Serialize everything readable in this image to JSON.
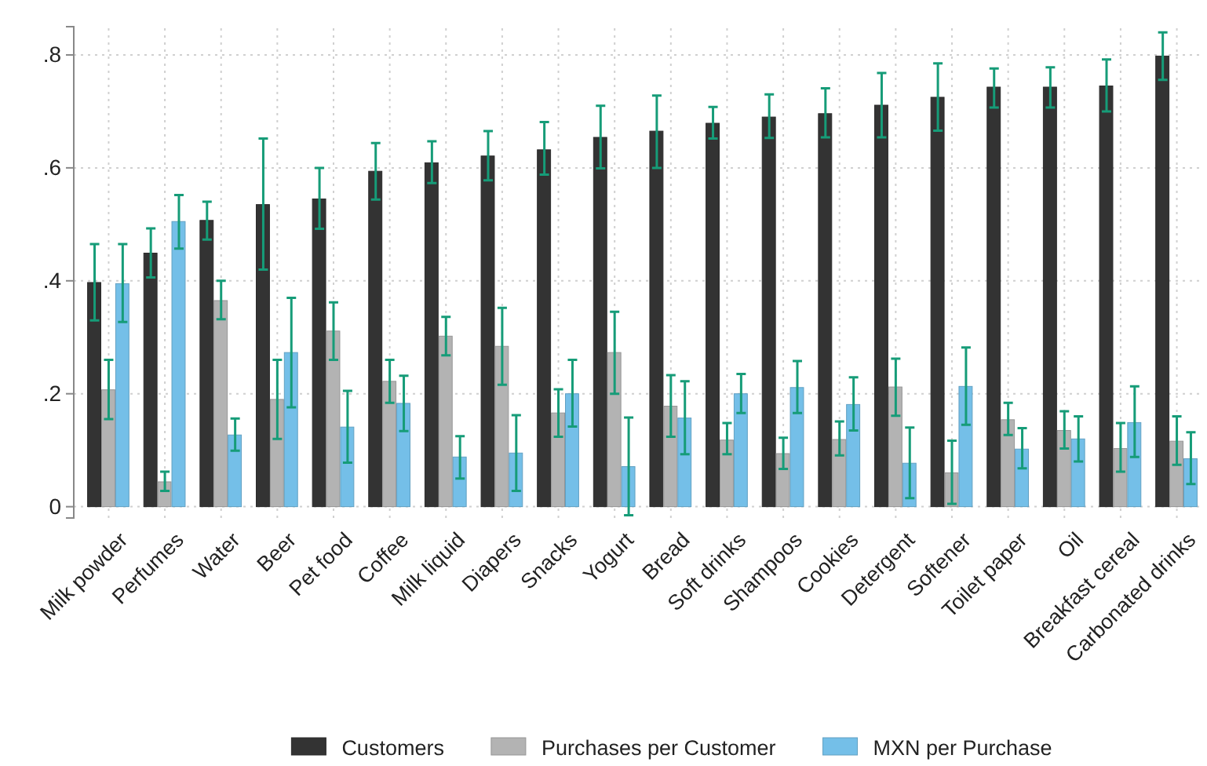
{
  "chart_data": {
    "type": "bar",
    "categories": [
      "Milk powder",
      "Perfumes",
      "Water",
      "Beer",
      "Pet food",
      "Coffee",
      "Milk liquid",
      "Diapers",
      "Snacks",
      "Yogurt",
      "Bread",
      "Soft drinks",
      "Shampoos",
      "Cookies",
      "Detergent",
      "Softener",
      "Toilet paper",
      "Oil",
      "Breakfast cereal",
      "Carbonated drinks"
    ],
    "series": [
      {
        "name": "Customers",
        "color": "#333333",
        "values": [
          0.397,
          0.449,
          0.507,
          0.535,
          0.545,
          0.594,
          0.609,
          0.621,
          0.632,
          0.654,
          0.665,
          0.679,
          0.69,
          0.696,
          0.711,
          0.725,
          0.743,
          0.743,
          0.745,
          0.798
        ],
        "errors": [
          [
            0.33,
            0.465
          ],
          [
            0.406,
            0.493
          ],
          [
            0.473,
            0.54
          ],
          [
            0.42,
            0.652
          ],
          [
            0.492,
            0.6
          ],
          [
            0.544,
            0.644
          ],
          [
            0.573,
            0.647
          ],
          [
            0.578,
            0.665
          ],
          [
            0.588,
            0.681
          ],
          [
            0.599,
            0.71
          ],
          [
            0.6,
            0.728
          ],
          [
            0.652,
            0.708
          ],
          [
            0.653,
            0.73
          ],
          [
            0.654,
            0.741
          ],
          [
            0.654,
            0.768
          ],
          [
            0.666,
            0.785
          ],
          [
            0.707,
            0.776
          ],
          [
            0.707,
            0.778
          ],
          [
            0.7,
            0.792
          ],
          [
            0.756,
            0.84
          ]
        ]
      },
      {
        "name": "Purchases per Customer",
        "color": "#b3b3b3",
        "values": [
          0.207,
          0.044,
          0.365,
          0.19,
          0.311,
          0.222,
          0.302,
          0.284,
          0.166,
          0.273,
          0.178,
          0.118,
          0.094,
          0.119,
          0.212,
          0.06,
          0.154,
          0.135,
          0.103,
          0.116
        ],
        "errors": [
          [
            0.155,
            0.26
          ],
          [
            0.028,
            0.062
          ],
          [
            0.332,
            0.4
          ],
          [
            0.12,
            0.26
          ],
          [
            0.26,
            0.362
          ],
          [
            0.184,
            0.26
          ],
          [
            0.268,
            0.336
          ],
          [
            0.216,
            0.352
          ],
          [
            0.124,
            0.208
          ],
          [
            0.2,
            0.345
          ],
          [
            0.124,
            0.233
          ],
          [
            0.093,
            0.148
          ],
          [
            0.067,
            0.122
          ],
          [
            0.091,
            0.151
          ],
          [
            0.161,
            0.262
          ],
          [
            0.005,
            0.117
          ],
          [
            0.127,
            0.184
          ],
          [
            0.103,
            0.169
          ],
          [
            0.062,
            0.148
          ],
          [
            0.074,
            0.16
          ]
        ]
      },
      {
        "name": "MXN per Purchase",
        "color": "#74bfe8",
        "values": [
          0.395,
          0.505,
          0.127,
          0.273,
          0.141,
          0.183,
          0.088,
          0.095,
          0.2,
          0.071,
          0.157,
          0.2,
          0.211,
          0.181,
          0.077,
          0.213,
          0.102,
          0.12,
          0.149,
          0.085
        ],
        "errors": [
          [
            0.327,
            0.465
          ],
          [
            0.457,
            0.552
          ],
          [
            0.099,
            0.156
          ],
          [
            0.176,
            0.37
          ],
          [
            0.078,
            0.205
          ],
          [
            0.134,
            0.232
          ],
          [
            0.05,
            0.125
          ],
          [
            0.028,
            0.162
          ],
          [
            0.142,
            0.26
          ],
          [
            -0.015,
            0.158
          ],
          [
            0.093,
            0.222
          ],
          [
            0.166,
            0.235
          ],
          [
            0.166,
            0.258
          ],
          [
            0.135,
            0.229
          ],
          [
            0.015,
            0.14
          ],
          [
            0.145,
            0.282
          ],
          [
            0.068,
            0.139
          ],
          [
            0.08,
            0.16
          ],
          [
            0.088,
            0.213
          ],
          [
            0.04,
            0.132
          ]
        ]
      }
    ],
    "ylim": [
      -0.02,
      0.85
    ],
    "yticks": [
      0,
      {
        "value": 0.2,
        "label": ".2"
      },
      {
        "value": 0.4,
        "label": ".4"
      },
      {
        "value": 0.6,
        "label": ".6"
      },
      {
        "value": 0.8,
        "label": ".8"
      }
    ],
    "grid": true,
    "legend": "bottom"
  }
}
